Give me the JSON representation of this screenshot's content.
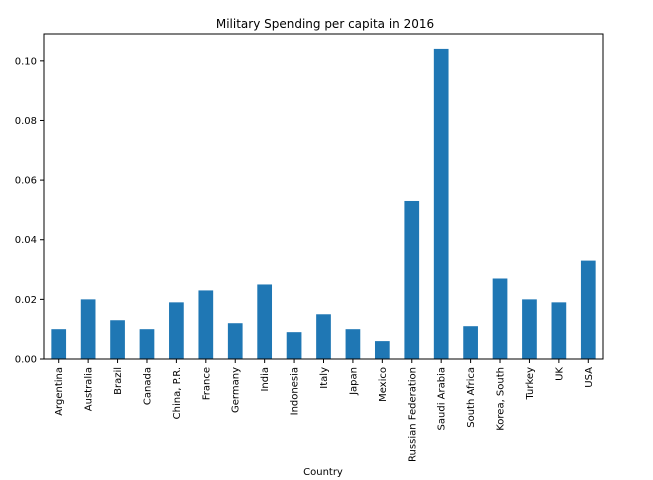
{
  "chart_data": {
    "type": "bar",
    "title": "Military Spending per capita in 2016",
    "xlabel": "Country",
    "ylabel": "",
    "categories": [
      "Argentina",
      "Australia",
      "Brazil",
      "Canada",
      "China, P.R.",
      "France",
      "Germany",
      "India",
      "Indonesia",
      "Italy",
      "Japan",
      "Mexico",
      "Russian Federation",
      "Saudi Arabia",
      "South Africa",
      "Korea, South",
      "Turkey",
      "UK",
      "USA"
    ],
    "values": [
      0.01,
      0.02,
      0.013,
      0.01,
      0.019,
      0.023,
      0.012,
      0.025,
      0.009,
      0.015,
      0.01,
      0.006,
      0.053,
      0.104,
      0.011,
      0.027,
      0.02,
      0.019,
      0.033
    ],
    "ylim": [
      0,
      0.109
    ],
    "yticks": [
      "0.00",
      "0.02",
      "0.04",
      "0.06",
      "0.08",
      "0.10"
    ],
    "bar_color": "#1f77b4",
    "legend": "none",
    "grid": false
  }
}
